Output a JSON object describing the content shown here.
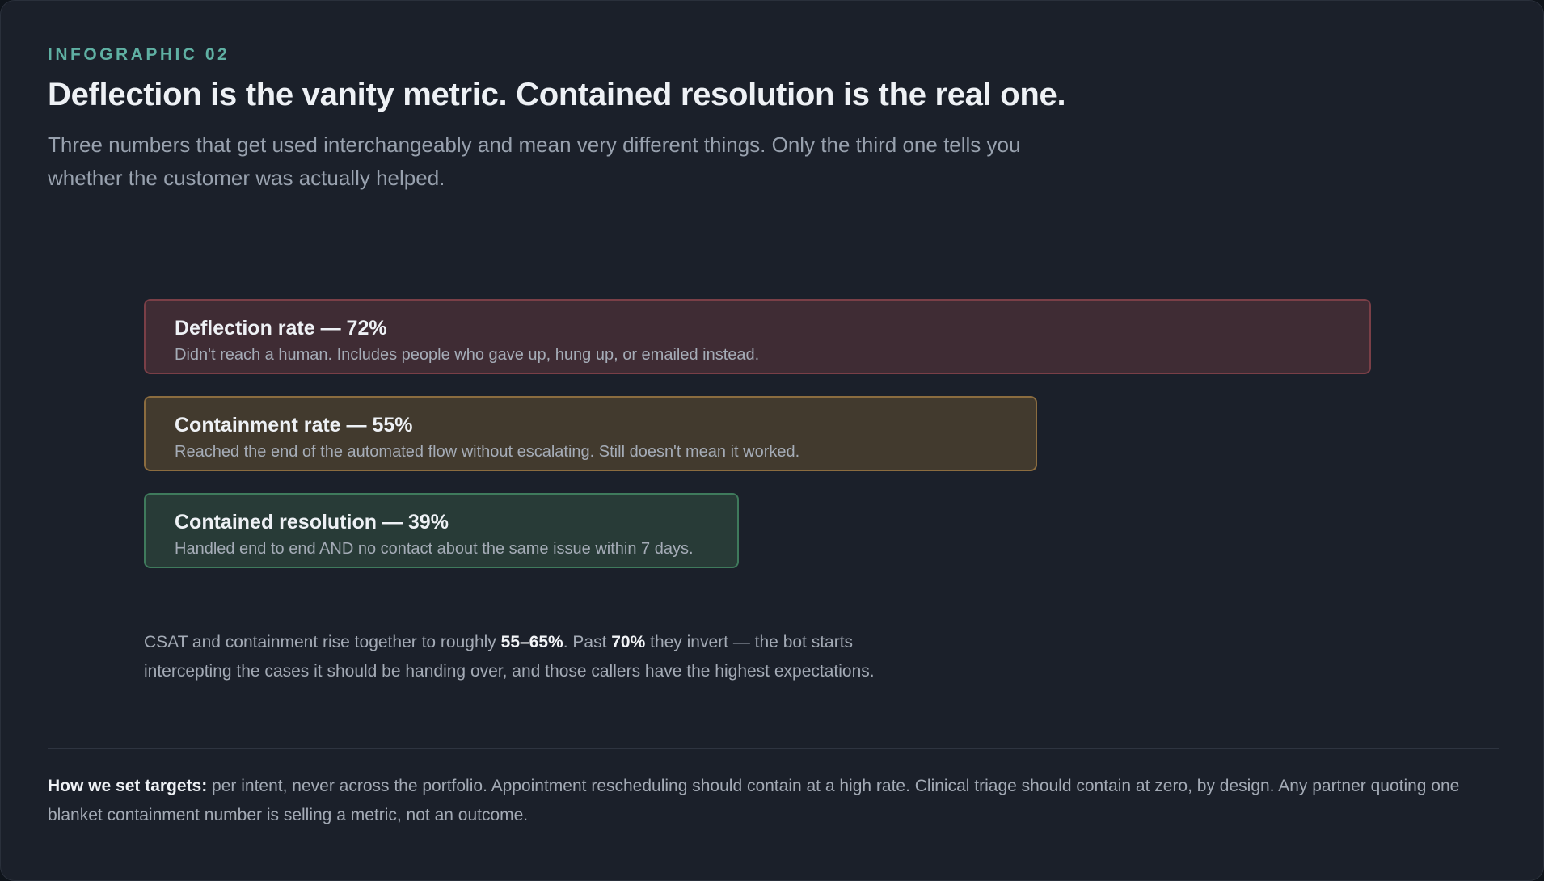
{
  "header": {
    "eyebrow": "INFOGRAPHIC 02",
    "title": "Deflection is the vanity metric. Contained resolution is the real one.",
    "subtitle": "Three numbers that get used interchangeably and mean very different things. Only the third one tells you whether the customer was actually helped."
  },
  "chart_data": {
    "type": "bar",
    "orientation": "horizontal",
    "unit": "%",
    "categories": [
      "Deflection rate",
      "Containment rate",
      "Contained resolution"
    ],
    "values": [
      72,
      55,
      39
    ],
    "labels": [
      "Deflection rate — 72%",
      "Containment rate — 55%",
      "Contained resolution — 39%"
    ],
    "descriptions": [
      "Didn't reach a human. Includes people who gave up, hung up, or emailed instead.",
      "Reached the end of the automated flow without escalating. Still doesn't mean it worked.",
      "Handled end to end AND no contact about the same issue within 7 days."
    ],
    "colors": [
      {
        "fill": "#3f2c34",
        "border": "#7a3f47"
      },
      {
        "fill": "#423a2e",
        "border": "#8b6c3f"
      },
      {
        "fill": "#283b37",
        "border": "#3f7a5c"
      }
    ]
  },
  "note": {
    "part1": "CSAT and containment rise together to roughly ",
    "bold1": "55–65%",
    "part2": ". Past ",
    "bold2": "70%",
    "part3": " they invert — the bot starts intercepting the cases it should be handing over, and those callers have the highest expectations."
  },
  "footer": {
    "label": "How we set targets:",
    "text": " per intent, never across the portfolio. Appointment rescheduling should contain at a high rate. Clinical triage should contain at zero, by design. Any partner quoting one blanket containment number is selling a metric, not an outcome."
  }
}
